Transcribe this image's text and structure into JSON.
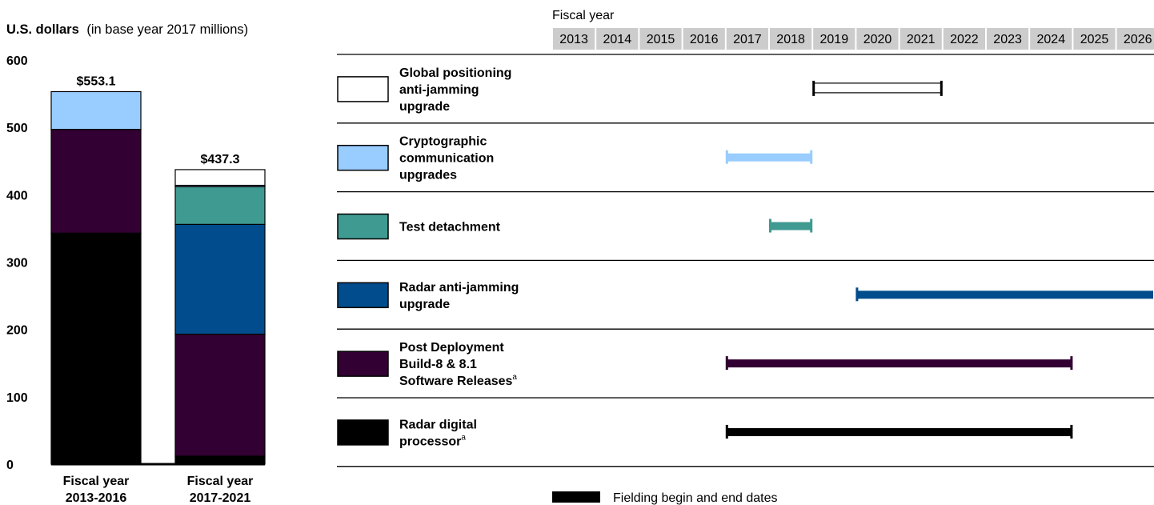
{
  "chart_data": [
    {
      "type": "bar",
      "stacked": true,
      "ylabel_bold": "U.S. dollars",
      "ylabel_note": "(in base year 2017 millions)",
      "ylim": [
        0,
        600
      ],
      "yticks": [
        "0",
        "100",
        "200",
        "300",
        "400",
        "500",
        "600"
      ],
      "categories": [
        {
          "line1": "Fiscal year",
          "line2": "2013-2016",
          "total_label": "$553.1",
          "total": 553.1
        },
        {
          "line1": "Fiscal year",
          "line2": "2017-2021",
          "total_label": "$437.3",
          "total": 437.3
        }
      ],
      "series": [
        {
          "name": "Radar digital processor",
          "color": "#000000",
          "values": [
            343,
            12
          ]
        },
        {
          "name": "Post Deployment Build-8 & 8.1 Software Releases",
          "color": "#330033",
          "values": [
            154,
            181
          ]
        },
        {
          "name": "Radar anti-jamming upgrade",
          "color": "#004C8C",
          "values": [
            0,
            163
          ]
        },
        {
          "name": "Test detachment",
          "color": "#3F9A91",
          "values": [
            0,
            56
          ]
        },
        {
          "name": "Cryptographic communication upgrades",
          "color": "#99CCFF",
          "values": [
            56.1,
            2
          ]
        },
        {
          "name": "Global positioning anti-jamming upgrade",
          "color": "#FFFFFF",
          "values": [
            0,
            23.3
          ]
        }
      ]
    },
    {
      "type": "gantt",
      "axis_title": "Fiscal year",
      "years": [
        "2013",
        "2014",
        "2015",
        "2016",
        "2017",
        "2018",
        "2019",
        "2020",
        "2021",
        "2022",
        "2023",
        "2024",
        "2025",
        "2026"
      ],
      "rows": [
        {
          "lines": [
            "Global positioning",
            "anti-jamming",
            "upgrade"
          ],
          "sup": "",
          "color": "#FFFFFF",
          "start": 2019.0,
          "end": 2021.0,
          "style": "outline"
        },
        {
          "lines": [
            "Cryptographic",
            "communication",
            "upgrades"
          ],
          "sup": "",
          "color": "#99CCFF",
          "start": 2017.0,
          "end": 2018.0,
          "style": "solid"
        },
        {
          "lines": [
            "Test detachment"
          ],
          "sup": "",
          "color": "#3F9A91",
          "start": 2018.0,
          "end": 2018.0,
          "style": "solid"
        },
        {
          "lines": [
            "Radar anti-jamming",
            "upgrade"
          ],
          "sup": "",
          "color": "#004C8C",
          "start": 2020.0,
          "end": 2026.0,
          "style": "solid"
        },
        {
          "lines": [
            "Post Deployment",
            "Build-8 & 8.1",
            "Software Releases"
          ],
          "sup": "a",
          "color": "#330033",
          "start": 2017.0,
          "end": 2024.0,
          "style": "solid"
        },
        {
          "lines": [
            "Radar digital",
            "processor"
          ],
          "sup": "a",
          "color": "#000000",
          "start": 2017.0,
          "end": 2024.0,
          "style": "solid"
        }
      ],
      "legend_label": "Fielding begin and end dates"
    }
  ]
}
